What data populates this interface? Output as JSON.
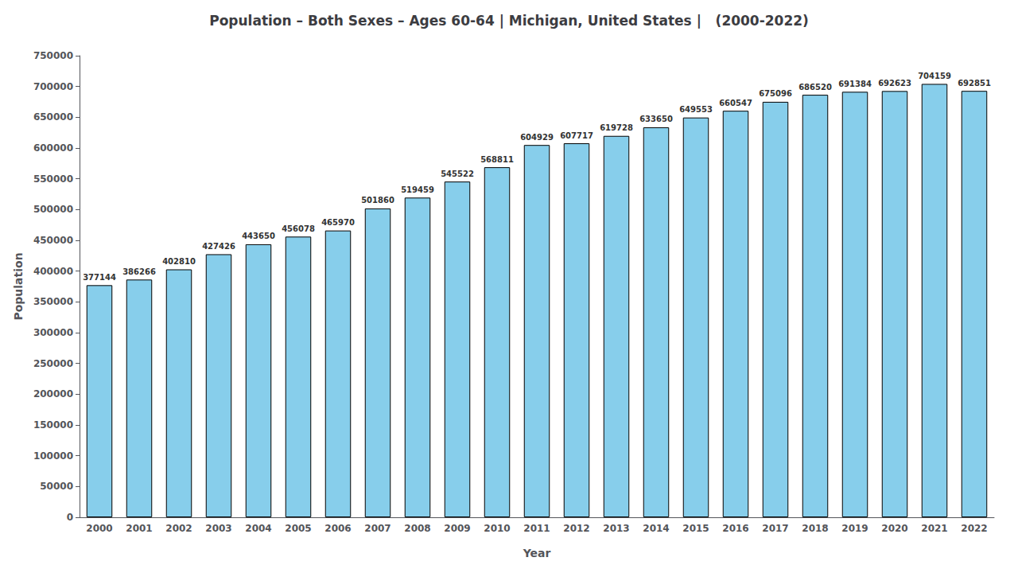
{
  "chart_data": {
    "type": "bar",
    "title": "Population – Both Sexes – Ages 60-64 | Michigan, United States |   (2000-2022)",
    "x_label": "Year",
    "y_label": "Population",
    "categories": [
      "2000",
      "2001",
      "2002",
      "2003",
      "2004",
      "2005",
      "2006",
      "2007",
      "2008",
      "2009",
      "2010",
      "2011",
      "2012",
      "2013",
      "2014",
      "2015",
      "2016",
      "2017",
      "2018",
      "2019",
      "2020",
      "2021",
      "2022"
    ],
    "values": [
      377144,
      386266,
      402810,
      427426,
      443650,
      456078,
      465970,
      501860,
      519459,
      545522,
      568811,
      604929,
      607717,
      619728,
      633650,
      649553,
      660547,
      675096,
      686520,
      691384,
      692623,
      704159,
      692851
    ],
    "color": "#87CEEB",
    "ylim": [
      0,
      750000
    ],
    "yticks": [
      0,
      50000,
      100000,
      150000,
      200000,
      250000,
      300000,
      350000,
      400000,
      450000,
      500000,
      550000,
      600000,
      650000,
      700000,
      750000
    ],
    "grid": false,
    "data_labels": true
  }
}
